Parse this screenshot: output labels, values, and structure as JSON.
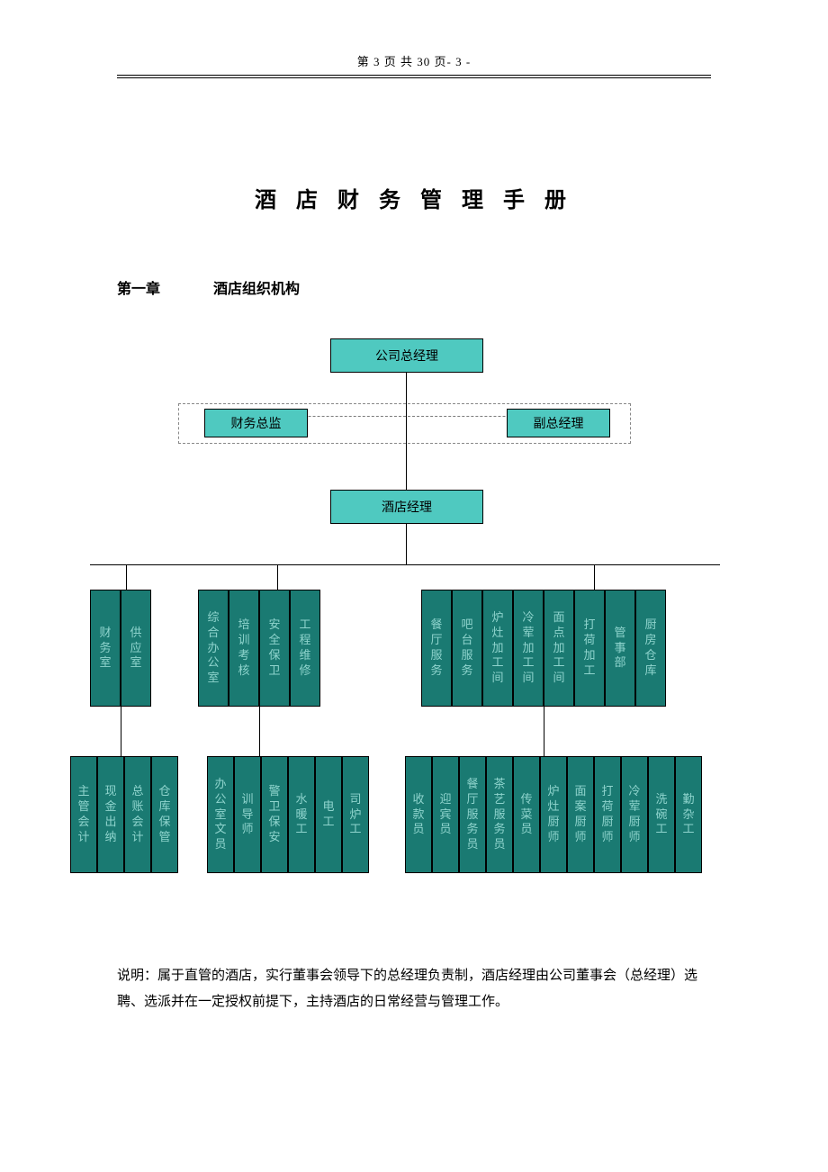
{
  "header": {
    "text": "第 3 页 共 30 页- 3 -"
  },
  "title": "酒 店 财 务 管 理 手 册",
  "chapter": {
    "label": "第一章",
    "title": "酒店组织机构"
  },
  "colors": {
    "top_node_bg": "#4fc9c0",
    "mid_node_bg": "#1a7a72",
    "mid_node_text": "#8fd4cd",
    "line": "#000000",
    "dashed": "#888888",
    "page_bg": "#ffffff",
    "text": "#000000"
  },
  "org": {
    "gm": "公司总经理",
    "cfo": "财务总监",
    "dgm": "副总经理",
    "hm": "酒店经理",
    "tier1": {
      "n0": "财务室",
      "n1": "供应室",
      "n2": "综合办公室",
      "n3": "培训考核",
      "n4": "安全保卫",
      "n5": "工程维修",
      "n6": "餐厅服务",
      "n7": "吧台服务",
      "n8": "炉灶加工间",
      "n9": "冷荤加工间",
      "n10": "面点加工间",
      "n11": "打荷加工",
      "n12": "管事部",
      "n13": "厨房仓库"
    },
    "tier2": {
      "m0": "主管会计",
      "m1": "现金出纳",
      "m2": "总账会计",
      "m3": "仓库保管",
      "m4": "办公室文员",
      "m5": "训导师",
      "m6": "警卫保安",
      "m7": "水暖工",
      "m8": "电工",
      "m9": "司炉工",
      "m10": "收款员",
      "m11": "迎宾员",
      "m12": "餐厅服务员",
      "m13": "茶艺服务员",
      "m14": "传菜员",
      "m15": "炉灶厨师",
      "m16": "面案厨师",
      "m17": "打荷厨师",
      "m18": "冷荤厨师",
      "m19": "洗碗工",
      "m20": "勤杂工"
    }
  },
  "note": "说明：属于直管的酒店，实行董事会领导下的总经理负责制，酒店经理由公司董事会（总经理）选聘、选派并在一定授权前提下，主持酒店的日常经营与管理工作。"
}
